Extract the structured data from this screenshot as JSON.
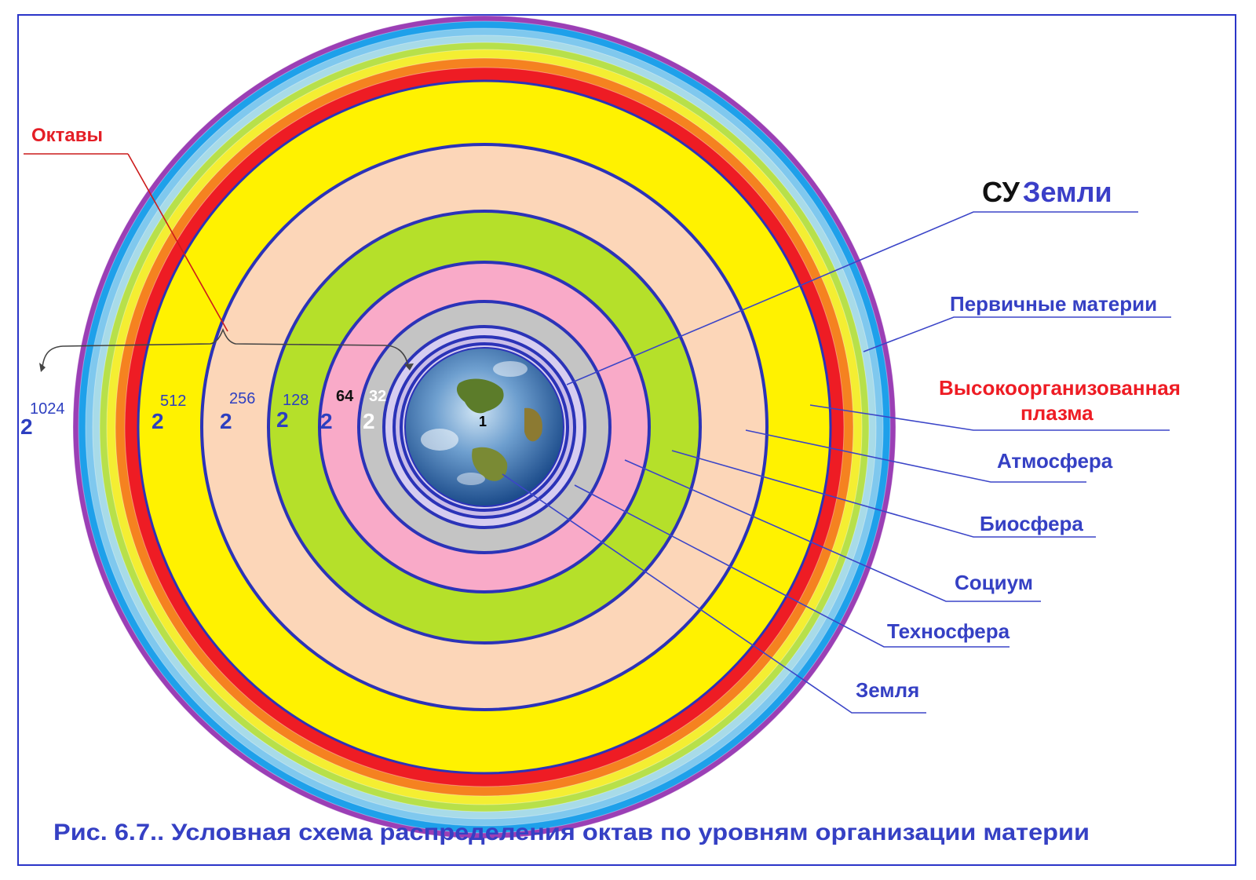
{
  "octaves_label": "Октавы",
  "su_label": {
    "prefix": "СУ",
    "rest": "Земли"
  },
  "layers": [
    {
      "id": "primary",
      "label": "Первичные материи",
      "color": "#2d3fc0"
    },
    {
      "id": "plasma",
      "label": [
        "Высокоорганизованная",
        "плазма"
      ],
      "color": "#ee1c24"
    },
    {
      "id": "atmosphere",
      "label": "Атмосфера",
      "color": "#2d3fc0"
    },
    {
      "id": "biosphere",
      "label": "Биосфера",
      "color": "#2d3fc0"
    },
    {
      "id": "socium",
      "label": "Социум",
      "color": "#2d3fc0"
    },
    {
      "id": "technosphere",
      "label": "Техносфера",
      "color": "#2d3fc0"
    },
    {
      "id": "earth",
      "label": "Земля",
      "color": "#2d3fc0"
    }
  ],
  "powers": [
    {
      "base": "2",
      "exp": "1024"
    },
    {
      "base": "2",
      "exp": "512"
    },
    {
      "base": "2",
      "exp": "256"
    },
    {
      "base": "2",
      "exp": "128"
    },
    {
      "base": "2",
      "exp": "64"
    },
    {
      "base": "2",
      "exp": "32"
    }
  ],
  "earth_mark": "1",
  "caption": "Рис. 6.7.. Условная схема распределения октав по уровням организации материи",
  "colors": {
    "outer_rings": [
      "#9b3fb5",
      "#1ea0ea",
      "#7fc8ee",
      "#a8dbe8",
      "#b7e04a",
      "#f4ee32",
      "#f58220",
      "#ee1c24"
    ],
    "yellow": "#fff200",
    "peach": "#fcd6b8",
    "green": "#b5e02a",
    "pink": "#f9aac8",
    "gray": "#c4c4c4",
    "lavender": "#d6cdf0",
    "ring_line": "#2b33b8",
    "leader_line": "#3b45c8",
    "octave_line": "#cc1b1b"
  }
}
